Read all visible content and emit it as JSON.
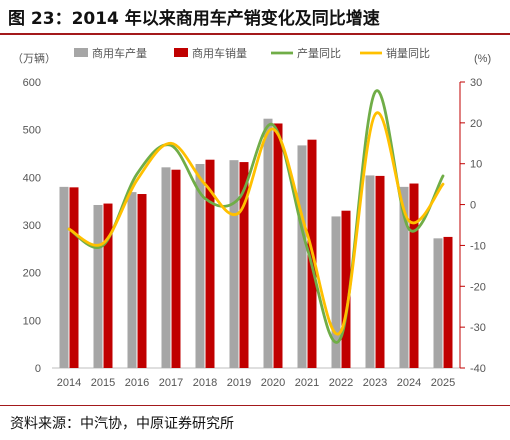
{
  "figure": {
    "title": "图 23：2014 年以来商用车产销变化及同比增速",
    "source": "资料来源：中汽协，中原证券研究所"
  },
  "colors": {
    "production_bar": "#a6a6a6",
    "sales_bar": "#c00000",
    "production_yoy_line": "#70ad47",
    "sales_yoy_line": "#ffc000",
    "right_axis": "#c00000",
    "title_rule": "#a3191b"
  },
  "chart_data": {
    "type": "bar",
    "categories": [
      "2014",
      "2015",
      "2016",
      "2017",
      "2018",
      "2019",
      "2020",
      "2021",
      "2022",
      "2023",
      "2024",
      "2025"
    ],
    "left_axis": {
      "unit": "（万辆）",
      "ylim": [
        0,
        600
      ],
      "ticks": [
        0,
        100,
        200,
        300,
        400,
        500,
        600
      ]
    },
    "right_axis": {
      "unit": "(%)",
      "ylim": [
        -40,
        30
      ],
      "ticks": [
        30,
        20,
        10,
        0,
        -10,
        -20,
        -30,
        -40
      ]
    },
    "series": [
      {
        "name": "商用车产量",
        "type": "bar",
        "axis": "left",
        "values": [
          380,
          342,
          369,
          421,
          428,
          436,
          523,
          467,
          318,
          404,
          380,
          272
        ]
      },
      {
        "name": "商用车销量",
        "type": "bar",
        "axis": "left",
        "values": [
          379,
          345,
          365,
          416,
          437,
          432,
          513,
          479,
          330,
          403,
          387,
          275
        ]
      },
      {
        "name": "产量同比",
        "type": "line",
        "axis": "right",
        "values": [
          -6,
          -10,
          7.5,
          14.5,
          1.5,
          1.5,
          19.5,
          -10.5,
          -32.5,
          27.5,
          -6,
          7
        ]
      },
      {
        "name": "销量同比",
        "type": "line",
        "axis": "right",
        "values": [
          -6,
          -9.5,
          6,
          15,
          5,
          -2,
          18.5,
          -7,
          -31,
          22,
          -4,
          5
        ]
      }
    ],
    "legend_position": "top",
    "grid": false
  }
}
